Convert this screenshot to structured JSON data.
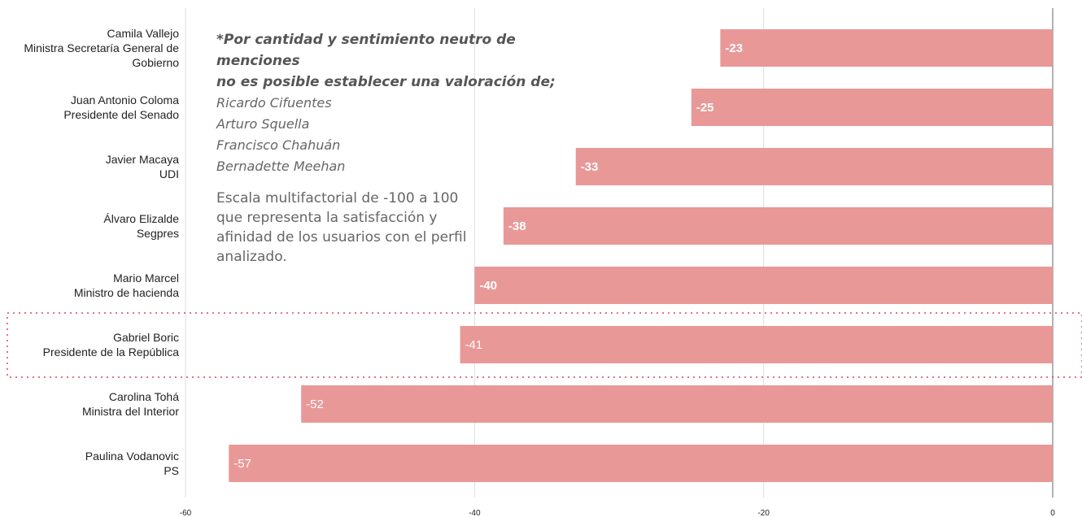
{
  "chart_data": {
    "type": "bar",
    "orientation": "horizontal",
    "categories": [
      [
        "Camila Vallejo",
        "Ministra Secretaría General de",
        "Gobierno"
      ],
      [
        "Juan Antonio Coloma",
        "Presidente del Senado"
      ],
      [
        "Javier Macaya",
        "UDI"
      ],
      [
        "Álvaro Elizalde",
        "Segpres"
      ],
      [
        "Mario Marcel",
        "Ministro de hacienda"
      ],
      [
        "Gabriel Boric",
        "Presidente de la República"
      ],
      [
        "Carolina Tohá",
        "Ministra del Interior"
      ],
      [
        "Paulina Vodanovic",
        "PS"
      ]
    ],
    "values": [
      -23,
      -25,
      -33,
      -38,
      -40,
      -41,
      -52,
      -57
    ],
    "value_labels": [
      "-23",
      "-25",
      "-33",
      "-38",
      "-40",
      "-41",
      "-52",
      "-57"
    ],
    "bold_value_labels": [
      true,
      true,
      true,
      true,
      true,
      false,
      false,
      false
    ],
    "xlim": [
      -60,
      0
    ],
    "xticks": [
      -60,
      -40,
      -20,
      0
    ],
    "xtick_labels": [
      "-60",
      "-40",
      "-20",
      "0"
    ],
    "highlighted_category_index": 5,
    "grid": true,
    "colors": {
      "bar": "#e99898",
      "grid": "#dddddd",
      "zero_axis": "#999999",
      "highlight_border": "#d9455a"
    }
  },
  "note": {
    "title_lines": [
      "*Por cantidad y sentimiento neutro de menciones",
      "no es posible establecer una valoración de;"
    ],
    "names": [
      "Ricardo Cifuentes",
      "Arturo Squella",
      "Francisco Chahuán",
      "Bernadette Meehan"
    ],
    "description": "Escala multifactorial de -100 a 100 que representa la satisfacción y afinidad de los usuarios con el perfil analizado."
  }
}
